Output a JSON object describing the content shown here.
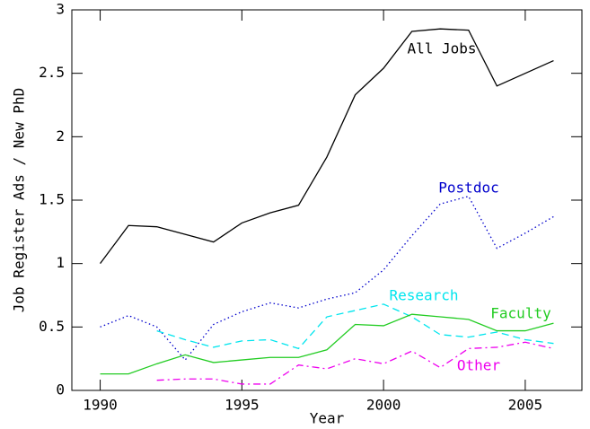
{
  "chart_data": {
    "type": "line",
    "xlabel": "Year",
    "ylabel": "Job Register Ads / New PhD",
    "x": [
      1990,
      1991,
      1992,
      1993,
      1994,
      1995,
      1996,
      1997,
      1998,
      1999,
      2000,
      2001,
      2002,
      2003,
      2004,
      2005,
      2006
    ],
    "series": [
      {
        "name": "All Jobs",
        "color": "#000000",
        "style": "solid",
        "values": [
          1.0,
          1.3,
          1.29,
          1.23,
          1.17,
          1.32,
          1.4,
          1.46,
          1.84,
          2.33,
          2.54,
          2.83,
          2.85,
          2.84,
          2.4,
          2.5,
          2.6
        ]
      },
      {
        "name": "Postdoc",
        "color": "#0000cc",
        "style": "dotted",
        "values": [
          0.5,
          0.59,
          0.5,
          0.24,
          0.52,
          0.62,
          0.69,
          0.65,
          0.72,
          0.77,
          0.95,
          1.22,
          1.47,
          1.53,
          1.12,
          1.24,
          1.37
        ]
      },
      {
        "name": "Research",
        "color": "#00e5ee",
        "style": "dashed",
        "values": [
          null,
          null,
          0.47,
          0.4,
          0.34,
          0.39,
          0.4,
          0.33,
          0.58,
          0.63,
          0.68,
          0.58,
          0.44,
          0.42,
          0.46,
          0.4,
          0.37
        ]
      },
      {
        "name": "Faculty",
        "color": "#22cc22",
        "style": "solid",
        "values": [
          0.13,
          0.13,
          0.21,
          0.28,
          0.22,
          0.24,
          0.26,
          0.26,
          0.32,
          0.52,
          0.51,
          0.6,
          0.58,
          0.56,
          0.47,
          0.47,
          0.53
        ]
      },
      {
        "name": "Other",
        "color": "#ee00ee",
        "style": "dashdot",
        "values": [
          null,
          null,
          0.08,
          0.09,
          0.09,
          0.05,
          0.05,
          0.2,
          0.17,
          0.25,
          0.21,
          0.31,
          0.18,
          0.33,
          0.34,
          0.38,
          0.33
        ]
      }
    ],
    "xlim": [
      1989,
      2007
    ],
    "xticks": [
      1990,
      1995,
      2000,
      2005
    ],
    "ylim": [
      0,
      3
    ],
    "yticks": [
      0,
      0.5,
      1,
      1.5,
      2,
      2.5,
      3
    ]
  }
}
